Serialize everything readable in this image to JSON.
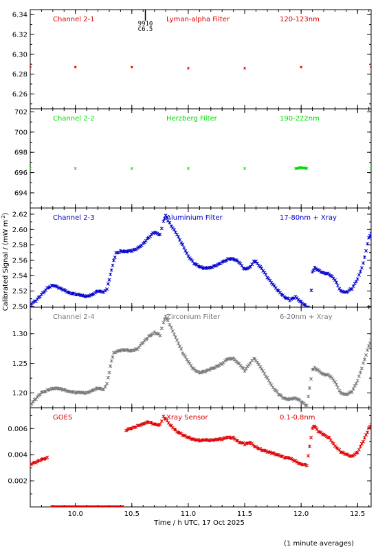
{
  "chart_data": {
    "type": "scatter",
    "xlabel": "Time / h UTC, 17 Oct 2025",
    "ylabel": "Calibrated Signal / (mW m",
    "ylabel_exp": "-2",
    "ylabel_close": ")",
    "footer": "(1 minute averages)",
    "xlim": [
      9.6,
      12.62
    ],
    "x_ticks": [
      10.0,
      10.5,
      11.0,
      11.5,
      12.0,
      12.5
    ],
    "x_tick_labels": [
      "10.0",
      "10.5",
      "11.0",
      "11.5",
      "12.0",
      "12.5"
    ],
    "annotation": {
      "x": 10.62,
      "line1": "9910",
      "line2": "C6.5"
    },
    "panels": [
      {
        "channel": "Channel 2-1",
        "filter": "Lyman-alpha Filter",
        "band": "120-123nm",
        "color": "#dd0000",
        "ylim": [
          6.245,
          6.345
        ],
        "y_ticks": [
          6.26,
          6.28,
          6.3,
          6.32,
          6.34
        ],
        "y_tick_labels": [
          "6.26",
          "6.28",
          "6.30",
          "6.32",
          "6.34"
        ],
        "points": [
          [
            9.6,
            6.287
          ],
          [
            10.0,
            6.287
          ],
          [
            10.5,
            6.287
          ],
          [
            11.0,
            6.286
          ],
          [
            11.5,
            6.286
          ],
          [
            12.0,
            6.287
          ],
          [
            12.62,
            6.287
          ]
        ]
      },
      {
        "channel": "Channel 2-2",
        "filter": "Herzberg Filter",
        "band": "190-222nm",
        "color": "#00dd00",
        "ylim": [
          692.5,
          702.3
        ],
        "y_ticks": [
          694,
          696,
          698,
          700,
          702
        ],
        "y_tick_labels": [
          "694",
          "696",
          "698",
          "700",
          "702"
        ],
        "points": [
          [
            9.6,
            696.4
          ],
          [
            10.0,
            696.4
          ],
          [
            10.5,
            696.4
          ],
          [
            11.0,
            696.4
          ],
          [
            11.5,
            696.4
          ],
          [
            11.95,
            696.4
          ],
          [
            12.0,
            696.5
          ],
          [
            12.05,
            696.4
          ],
          [
            12.62,
            696.4
          ]
        ]
      },
      {
        "channel": "Channel 2-3",
        "filter": "Aluminium Filter",
        "band": "17-80nm + Xray",
        "color": "#0000cc",
        "ylim": [
          2.499,
          2.628
        ],
        "y_ticks": [
          2.5,
          2.52,
          2.54,
          2.56,
          2.58,
          2.6,
          2.62
        ],
        "y_tick_labels": [
          "2.50",
          "2.52",
          "2.54",
          "2.56",
          "2.58",
          "2.60",
          "2.62"
        ],
        "points": [
          [
            9.6,
            2.503
          ],
          [
            9.65,
            2.507
          ],
          [
            9.7,
            2.515
          ],
          [
            9.75,
            2.524
          ],
          [
            9.8,
            2.528
          ],
          [
            9.85,
            2.524
          ],
          [
            9.9,
            2.521
          ],
          [
            9.95,
            2.518
          ],
          [
            10.0,
            2.516
          ],
          [
            10.05,
            2.514
          ],
          [
            10.1,
            2.513
          ],
          [
            10.15,
            2.516
          ],
          [
            10.2,
            2.52
          ],
          [
            10.25,
            2.518
          ],
          [
            10.28,
            2.522
          ],
          [
            10.3,
            2.535
          ],
          [
            10.32,
            2.548
          ],
          [
            10.34,
            2.56
          ],
          [
            10.36,
            2.569
          ],
          [
            10.4,
            2.572
          ],
          [
            10.45,
            2.572
          ],
          [
            10.5,
            2.572
          ],
          [
            10.55,
            2.575
          ],
          [
            10.6,
            2.582
          ],
          [
            10.65,
            2.59
          ],
          [
            10.7,
            2.596
          ],
          [
            10.75,
            2.593
          ],
          [
            10.78,
            2.61
          ],
          [
            10.8,
            2.618
          ],
          [
            10.82,
            2.612
          ],
          [
            10.85,
            2.605
          ],
          [
            10.9,
            2.593
          ],
          [
            10.95,
            2.58
          ],
          [
            11.0,
            2.566
          ],
          [
            11.05,
            2.556
          ],
          [
            11.1,
            2.551
          ],
          [
            11.15,
            2.55
          ],
          [
            11.2,
            2.551
          ],
          [
            11.25,
            2.553
          ],
          [
            11.3,
            2.557
          ],
          [
            11.35,
            2.562
          ],
          [
            11.4,
            2.562
          ],
          [
            11.45,
            2.557
          ],
          [
            11.5,
            2.548
          ],
          [
            11.55,
            2.552
          ],
          [
            11.58,
            2.559
          ],
          [
            11.6,
            2.558
          ],
          [
            11.65,
            2.55
          ],
          [
            11.7,
            2.538
          ],
          [
            11.75,
            2.528
          ],
          [
            11.8,
            2.52
          ],
          [
            11.85,
            2.513
          ],
          [
            11.9,
            2.508
          ],
          [
            11.95,
            2.512
          ],
          [
            12.0,
            2.506
          ],
          [
            12.05,
            2.5
          ],
          [
            12.08,
            2.498
          ],
          [
            12.1,
            2.545
          ],
          [
            12.12,
            2.55
          ],
          [
            12.15,
            2.547
          ],
          [
            12.2,
            2.544
          ],
          [
            12.25,
            2.542
          ],
          [
            12.3,
            2.534
          ],
          [
            12.35,
            2.52
          ],
          [
            12.4,
            2.519
          ],
          [
            12.45,
            2.523
          ],
          [
            12.5,
            2.535
          ],
          [
            12.55,
            2.556
          ],
          [
            12.6,
            2.59
          ],
          [
            12.62,
            2.595
          ]
        ]
      },
      {
        "channel": "Channel 2-4",
        "filter": "Zirconium Filter",
        "band": "6-20nm + Xray",
        "color": "#777777",
        "ylim": [
          1.175,
          1.345
        ],
        "y_ticks": [
          1.2,
          1.25,
          1.3
        ],
        "y_tick_labels": [
          "1.20",
          "1.25",
          "1.30"
        ],
        "points": [
          [
            9.6,
            1.18
          ],
          [
            9.65,
            1.19
          ],
          [
            9.7,
            1.2
          ],
          [
            9.75,
            1.205
          ],
          [
            9.8,
            1.208
          ],
          [
            9.85,
            1.207
          ],
          [
            9.9,
            1.205
          ],
          [
            9.95,
            1.203
          ],
          [
            10.0,
            1.201
          ],
          [
            10.05,
            1.2
          ],
          [
            10.1,
            1.2
          ],
          [
            10.15,
            1.205
          ],
          [
            10.2,
            1.208
          ],
          [
            10.25,
            1.205
          ],
          [
            10.28,
            1.215
          ],
          [
            10.3,
            1.235
          ],
          [
            10.32,
            1.255
          ],
          [
            10.34,
            1.268
          ],
          [
            10.38,
            1.272
          ],
          [
            10.45,
            1.272
          ],
          [
            10.5,
            1.272
          ],
          [
            10.55,
            1.275
          ],
          [
            10.6,
            1.285
          ],
          [
            10.65,
            1.295
          ],
          [
            10.7,
            1.303
          ],
          [
            10.75,
            1.298
          ],
          [
            10.78,
            1.32
          ],
          [
            10.8,
            1.33
          ],
          [
            10.82,
            1.322
          ],
          [
            10.85,
            1.31
          ],
          [
            10.9,
            1.29
          ],
          [
            10.95,
            1.268
          ],
          [
            11.0,
            1.252
          ],
          [
            11.05,
            1.24
          ],
          [
            11.1,
            1.235
          ],
          [
            11.15,
            1.236
          ],
          [
            11.2,
            1.24
          ],
          [
            11.25,
            1.245
          ],
          [
            11.3,
            1.25
          ],
          [
            11.35,
            1.257
          ],
          [
            11.4,
            1.258
          ],
          [
            11.45,
            1.25
          ],
          [
            11.5,
            1.238
          ],
          [
            11.55,
            1.25
          ],
          [
            11.58,
            1.258
          ],
          [
            11.6,
            1.255
          ],
          [
            11.65,
            1.24
          ],
          [
            11.7,
            1.225
          ],
          [
            11.75,
            1.21
          ],
          [
            11.8,
            1.198
          ],
          [
            11.85,
            1.19
          ],
          [
            11.9,
            1.19
          ],
          [
            11.95,
            1.192
          ],
          [
            12.0,
            1.185
          ],
          [
            12.05,
            1.178
          ],
          [
            12.1,
            1.24
          ],
          [
            12.12,
            1.242
          ],
          [
            12.15,
            1.238
          ],
          [
            12.2,
            1.232
          ],
          [
            12.25,
            1.23
          ],
          [
            12.3,
            1.218
          ],
          [
            12.35,
            1.2
          ],
          [
            12.4,
            1.198
          ],
          [
            12.45,
            1.202
          ],
          [
            12.5,
            1.22
          ],
          [
            12.55,
            1.25
          ],
          [
            12.6,
            1.28
          ],
          [
            12.62,
            1.29
          ]
        ]
      },
      {
        "channel": "GOES",
        "filter": "Xray Sensor",
        "band": "0.1-0.8nm",
        "color": "#dd0000",
        "ylim": [
          0.0,
          0.0076
        ],
        "y_ticks": [
          0.002,
          0.004,
          0.006
        ],
        "y_tick_labels": [
          "0.002",
          "0.004",
          "0.006"
        ],
        "points": [
          [
            9.6,
            0.0033
          ],
          [
            9.65,
            0.0034
          ],
          [
            9.7,
            0.0036
          ],
          [
            9.75,
            0.0038
          ],
          [
            10.45,
            0.0059
          ],
          [
            10.5,
            0.006
          ],
          [
            10.55,
            0.0062
          ],
          [
            10.6,
            0.0064
          ],
          [
            10.65,
            0.0065
          ],
          [
            10.7,
            0.0063
          ],
          [
            10.75,
            0.0063
          ],
          [
            10.78,
            0.0069
          ],
          [
            10.8,
            0.0067
          ],
          [
            10.85,
            0.0062
          ],
          [
            10.9,
            0.0058
          ],
          [
            10.95,
            0.0055
          ],
          [
            11.0,
            0.0053
          ],
          [
            11.05,
            0.0052
          ],
          [
            11.1,
            0.0051
          ],
          [
            11.15,
            0.0051
          ],
          [
            11.2,
            0.0051
          ],
          [
            11.25,
            0.0052
          ],
          [
            11.3,
            0.0052
          ],
          [
            11.35,
            0.0053
          ],
          [
            11.4,
            0.0053
          ],
          [
            11.45,
            0.005
          ],
          [
            11.5,
            0.0048
          ],
          [
            11.55,
            0.0049
          ],
          [
            11.6,
            0.0046
          ],
          [
            11.65,
            0.0044
          ],
          [
            11.7,
            0.0042
          ],
          [
            11.75,
            0.0041
          ],
          [
            11.8,
            0.004
          ],
          [
            11.85,
            0.0038
          ],
          [
            11.9,
            0.0037
          ],
          [
            11.95,
            0.0035
          ],
          [
            12.0,
            0.0033
          ],
          [
            12.05,
            0.0032
          ],
          [
            12.1,
            0.006
          ],
          [
            12.12,
            0.0062
          ],
          [
            12.15,
            0.0058
          ],
          [
            12.2,
            0.0055
          ],
          [
            12.25,
            0.0053
          ],
          [
            12.3,
            0.0047
          ],
          [
            12.35,
            0.0042
          ],
          [
            12.4,
            0.004
          ],
          [
            12.45,
            0.0039
          ],
          [
            12.5,
            0.0042
          ],
          [
            12.55,
            0.005
          ],
          [
            12.6,
            0.006
          ],
          [
            12.62,
            0.0063
          ]
        ],
        "baseline": {
          "y": 0.0,
          "x_start": 9.78,
          "x_end": 10.43
        }
      }
    ]
  }
}
